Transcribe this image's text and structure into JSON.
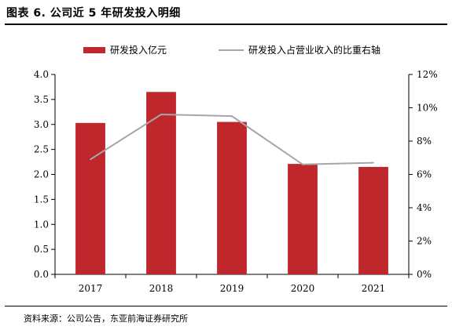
{
  "title": "图表 6.   公司近 5 年研发投入明细",
  "source": "资料来源：公司公告，东亚前海证券研究所",
  "colors": {
    "bar": "#c0272d",
    "line": "#a6a6a6"
  },
  "chart_data": {
    "type": "bar",
    "categories": [
      "2017",
      "2018",
      "2019",
      "2020",
      "2021"
    ],
    "series": [
      {
        "name": "研发投入亿元",
        "type": "bar",
        "axis": "left",
        "values": [
          3.03,
          3.65,
          3.05,
          2.21,
          2.15
        ]
      },
      {
        "name": "研发投入占营业收入的比重右轴",
        "type": "line",
        "axis": "right",
        "values": [
          6.9,
          9.6,
          9.5,
          6.6,
          6.7
        ]
      }
    ],
    "y_left": {
      "min": 0,
      "max": 4,
      "step": 0.5,
      "ticks": [
        "0.0",
        "0.5",
        "1.0",
        "1.5",
        "2.0",
        "2.5",
        "3.0",
        "3.5",
        "4.0"
      ]
    },
    "y_right": {
      "min": 0,
      "max": 12,
      "step": 2,
      "ticks": [
        "0%",
        "2%",
        "4%",
        "6%",
        "8%",
        "10%",
        "12%"
      ]
    },
    "legend": [
      "研发投入亿元",
      "研发投入占营业收入的比重右轴"
    ],
    "legend_position": "top",
    "grid": false
  }
}
